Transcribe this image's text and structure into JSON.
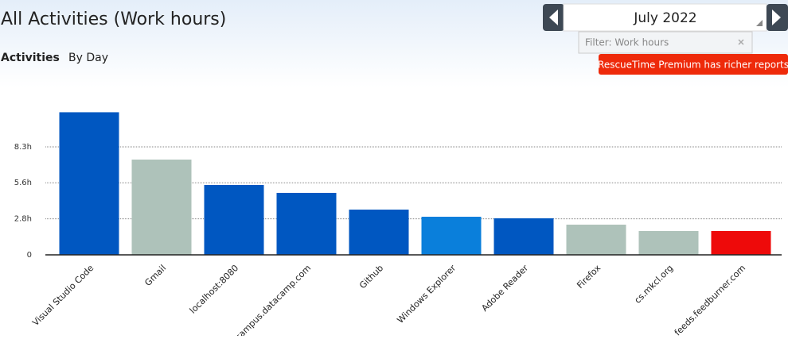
{
  "header": {
    "title": "All Activities (Work hours)",
    "tabs": [
      "Activities",
      "By Day"
    ],
    "date": "July 2022",
    "filter": "Filter: Work hours",
    "premium_button": "RescueTime Premium has richer reports"
  },
  "chart_data": {
    "type": "bar",
    "categories": [
      "Visual Studio Code",
      "Gmail",
      "localhost:8080",
      "campus.datacamp.com",
      "Github",
      "Windows Explorer",
      "Adobe Reader",
      "Firefox",
      "cs.mkcl.org",
      "feeds.feedburner.com"
    ],
    "values": [
      11.0,
      7.35,
      5.39,
      4.78,
      3.49,
      2.94,
      2.82,
      2.33,
      1.84,
      1.84
    ],
    "colors": [
      "#0057c1",
      "#aec2ba",
      "#0057c1",
      "#0057c1",
      "#0057c1",
      "#0a7fdb",
      "#0057c1",
      "#aec2ba",
      "#aec2ba",
      "#ee0a0a"
    ],
    "ylim": [
      0,
      11.7
    ],
    "yticks": [
      0,
      {
        "value": 2.78,
        "label": "2.8h"
      },
      {
        "value": 5.56,
        "label": "5.6h"
      },
      {
        "value": 8.33,
        "label": "8.3h"
      }
    ],
    "grid": true
  }
}
